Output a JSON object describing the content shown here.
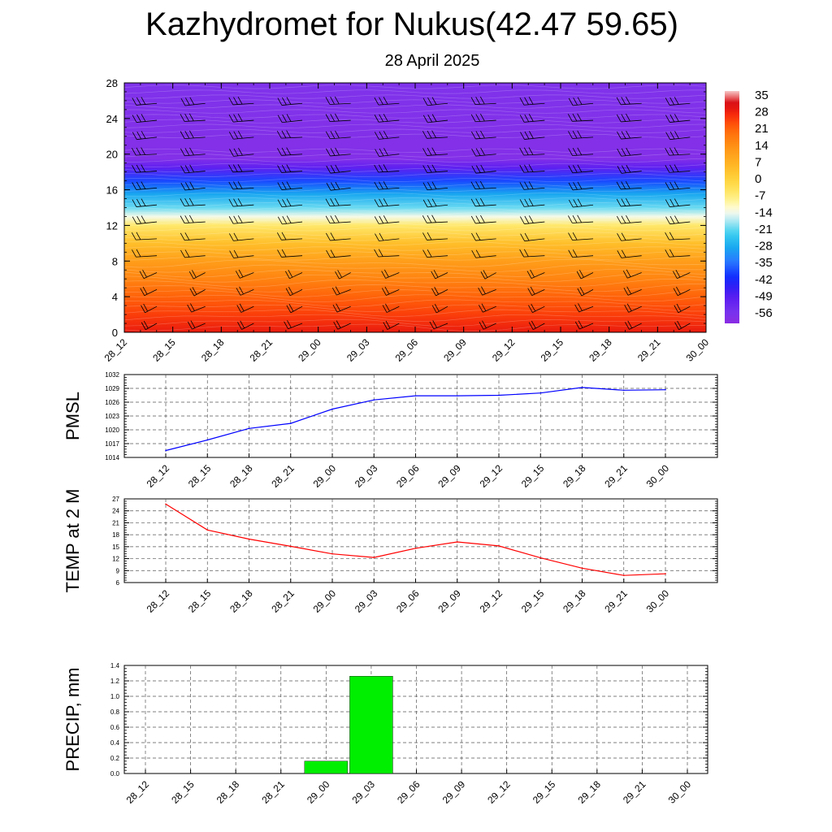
{
  "page": {
    "title": "Kazhydromet for Nukus(42.47 59.65)",
    "subtitle": "28 April 2025"
  },
  "times": [
    "28_12",
    "28_15",
    "28_18",
    "28_21",
    "29_00",
    "29_03",
    "29_06",
    "29_09",
    "29_12",
    "29_15",
    "29_18",
    "29_21",
    "30_00"
  ],
  "chart_data": [
    {
      "type": "heatmap",
      "title": "",
      "ylabel": "",
      "xlabel": "",
      "ylim": [
        0,
        28
      ],
      "yticks": [
        0,
        4,
        8,
        12,
        16,
        20,
        24,
        28
      ],
      "x": [
        "28_12",
        "28_15",
        "28_18",
        "28_21",
        "29_00",
        "29_03",
        "29_06",
        "29_09",
        "29_12",
        "29_15",
        "29_18",
        "29_21",
        "30_00"
      ],
      "colorbar": {
        "labels": [
          "35",
          "28",
          "21",
          "14",
          "7",
          "0",
          "-7",
          "-14",
          "-21",
          "-28",
          "-35",
          "-42",
          "-49",
          "-56"
        ],
        "range": [
          -60,
          38
        ]
      },
      "temperature_profile": [
        {
          "level": 0,
          "value": 30
        },
        {
          "level": 2,
          "value": 26
        },
        {
          "level": 4,
          "value": 22
        },
        {
          "level": 6,
          "value": 17
        },
        {
          "level": 8,
          "value": 12
        },
        {
          "level": 10,
          "value": 5
        },
        {
          "level": 12,
          "value": -5
        },
        {
          "level": 13,
          "value": -13
        },
        {
          "level": 14,
          "value": -20
        },
        {
          "level": 15.5,
          "value": -28
        },
        {
          "level": 17,
          "value": -38
        },
        {
          "level": 18.5,
          "value": -50
        },
        {
          "level": 19.5,
          "value": -58
        },
        {
          "level": 21,
          "value": -58
        },
        {
          "level": 28,
          "value": -57
        }
      ],
      "wind_barbs": "present"
    },
    {
      "type": "line",
      "ylabel": "PMSL",
      "ylim": [
        1014,
        1032
      ],
      "yticks": [
        1014,
        1017,
        1020,
        1023,
        1026,
        1029,
        1032
      ],
      "x": [
        "28_12",
        "28_15",
        "28_18",
        "28_21",
        "29_00",
        "29_03",
        "29_06",
        "29_09",
        "29_12",
        "29_15",
        "29_18",
        "29_21",
        "30_00"
      ],
      "series": [
        {
          "values": [
            1015.5,
            1017.8,
            1020.3,
            1021.4,
            1024.5,
            1026.5,
            1027.4,
            1027.4,
            1027.5,
            1028.0,
            1029.2,
            1028.6,
            1028.7
          ],
          "color": "#0000ff"
        }
      ],
      "grid": true
    },
    {
      "type": "line",
      "ylabel": "TEMP at 2 M",
      "ylim": [
        6,
        27
      ],
      "yticks": [
        6,
        9,
        12,
        15,
        18,
        21,
        24,
        27
      ],
      "x": [
        "28_12",
        "28_15",
        "28_18",
        "28_21",
        "29_00",
        "29_03",
        "29_06",
        "29_09",
        "29_12",
        "29_15",
        "29_18",
        "29_21",
        "30_00"
      ],
      "series": [
        {
          "values": [
            25.7,
            19.2,
            16.9,
            15.1,
            13.2,
            12.3,
            14.6,
            16.2,
            15.2,
            12.2,
            9.6,
            7.8,
            8.2
          ],
          "color": "#ff0000"
        }
      ],
      "grid": true
    },
    {
      "type": "bar",
      "ylabel": "PRECIP, mm",
      "ylim": [
        0.0,
        1.4
      ],
      "yticks": [
        "0.0",
        "0.2",
        "0.4",
        "0.6",
        "0.8",
        "1.0",
        "1.2",
        "1.4"
      ],
      "categories": [
        "28_12",
        "28_15",
        "28_18",
        "28_21",
        "29_00",
        "29_03",
        "29_06",
        "29_09",
        "29_12",
        "29_15",
        "29_18",
        "29_21",
        "30_00"
      ],
      "values": [
        0,
        0,
        0,
        0,
        0.16,
        1.26,
        0,
        0,
        0,
        0,
        0,
        0,
        0
      ],
      "color": "#00ee00",
      "grid": true
    }
  ]
}
